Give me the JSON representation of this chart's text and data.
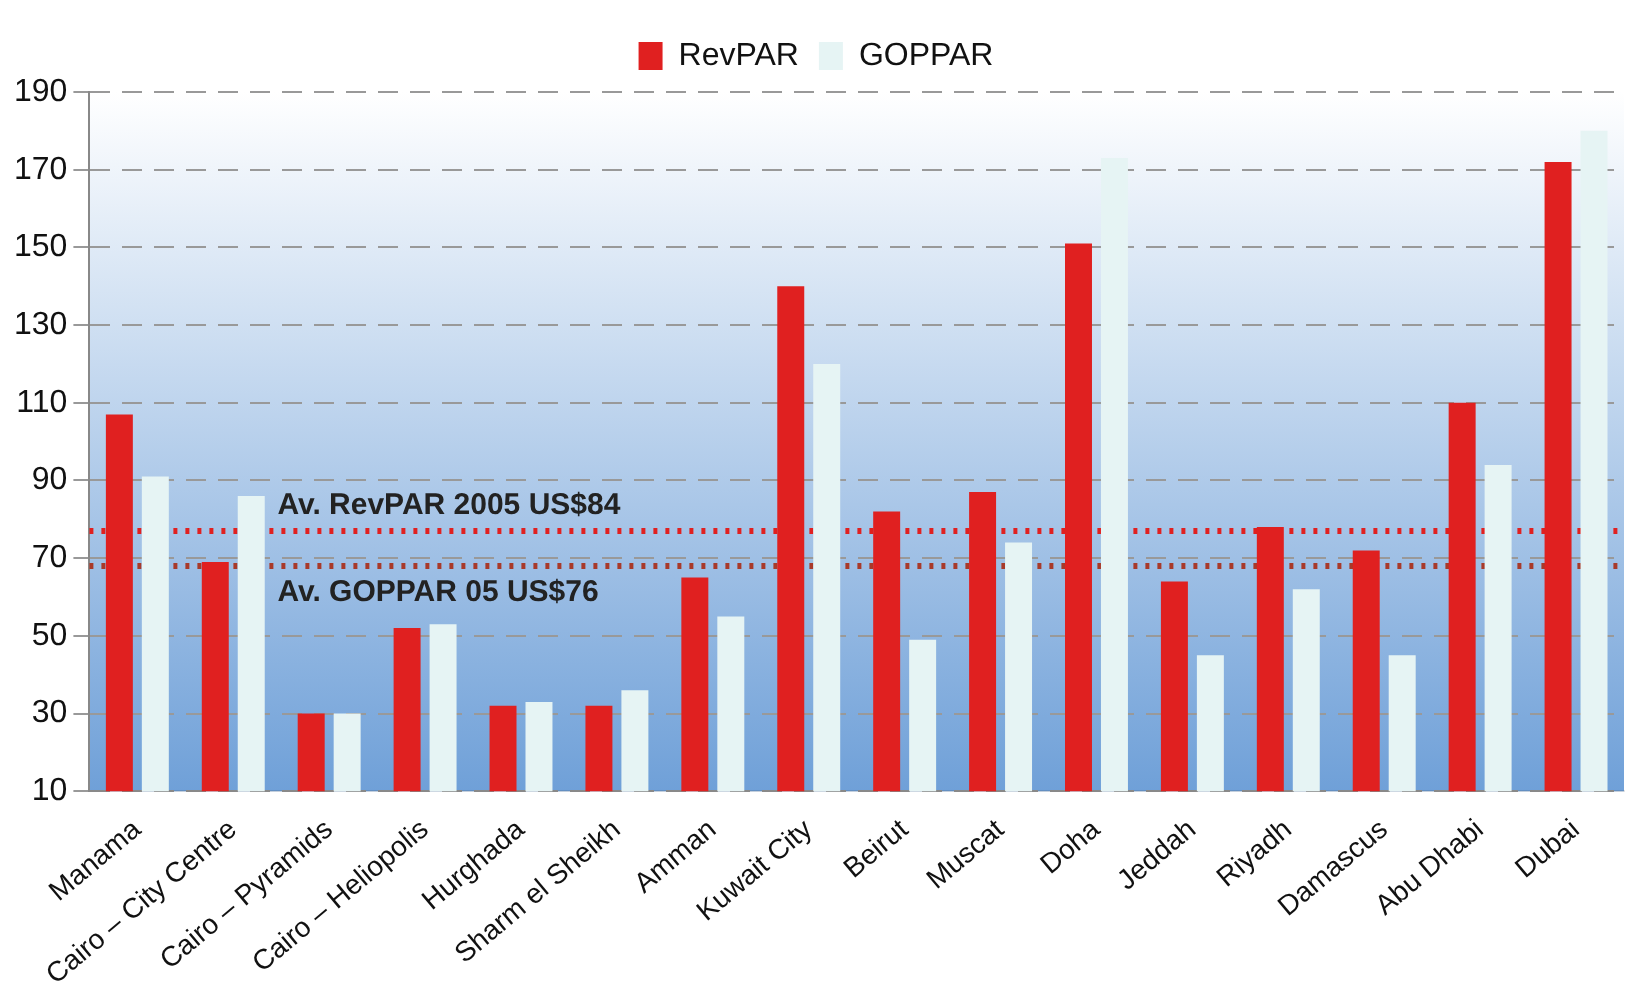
{
  "chart_data": {
    "type": "bar",
    "categories": [
      "Manama",
      "Cairo – City Centre",
      "Cairo – Pyramids",
      "Cairo – Heliopolis",
      "Hurghada",
      "Sharm el Sheikh",
      "Amman",
      "Kuwait City",
      "Beirut",
      "Muscat",
      "Doha",
      "Jeddah",
      "Riyadh",
      "Damascus",
      "Abu Dhabi",
      "Dubai"
    ],
    "series": [
      {
        "name": "RevPAR",
        "color": "#e02020",
        "values": [
          107,
          69,
          30,
          52,
          32,
          32,
          65,
          140,
          82,
          87,
          151,
          64,
          78,
          72,
          110,
          172
        ]
      },
      {
        "name": "GOPPAR",
        "color": "#e6f4f4",
        "values": [
          91,
          86,
          30,
          53,
          33,
          36,
          55,
          120,
          49,
          74,
          173,
          45,
          62,
          45,
          94,
          180
        ]
      }
    ],
    "ylim": [
      10,
      190
    ],
    "yticks": [
      10,
      30,
      50,
      70,
      90,
      110,
      130,
      150,
      170,
      190
    ],
    "grid": "y",
    "legend": "top",
    "ref_lines": [
      {
        "axis": "y",
        "value": 77,
        "label": "Av. RevPAR 2005 US$84",
        "color": "#e02020",
        "line_style": "dotted"
      },
      {
        "axis": "y",
        "value": 68,
        "label": "Av. GOPPAR 05 US$76",
        "color": "#a83a2a",
        "line_style": "dotted"
      }
    ]
  }
}
